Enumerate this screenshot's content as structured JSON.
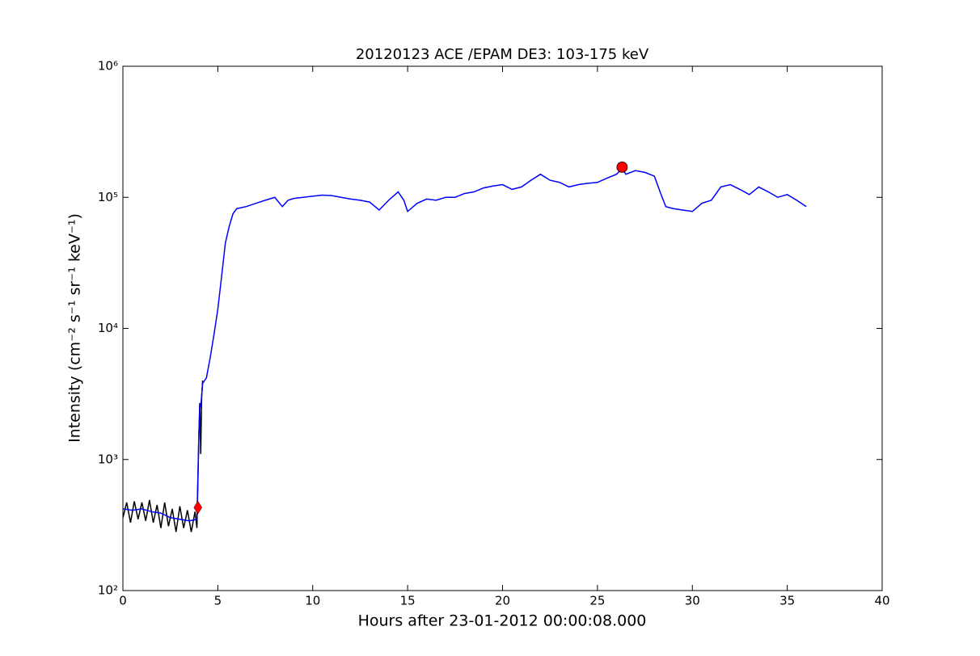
{
  "chart_data": {
    "type": "line",
    "title": "20120123 ACE /EPAM DE3: 103-175 keV",
    "x_label": "Hours after 23-01-2012 00:00:08.000",
    "y_label": "Intensity (cm⁻² s⁻¹ sr⁻¹ keV⁻¹)",
    "log_y": true,
    "xlim": [
      0,
      40
    ],
    "xticks": [
      0,
      5,
      10,
      15,
      20,
      25,
      30,
      35,
      40
    ],
    "ylim": [
      100,
      1000000
    ],
    "yticks": [
      {
        "value": 100,
        "label": "10²"
      },
      {
        "value": 1000,
        "label": "10³"
      },
      {
        "value": 10000,
        "label": "10⁴"
      },
      {
        "value": 100000,
        "label": "10⁵"
      },
      {
        "value": 1000000,
        "label": "10⁶"
      }
    ],
    "series": [
      {
        "color": "#000000",
        "x": [
          0,
          0.2,
          0.4,
          0.6,
          0.8,
          1.0,
          1.2,
          1.4,
          1.6,
          1.8,
          2.0,
          2.2,
          2.4,
          2.6,
          2.8,
          3.0,
          3.2,
          3.4,
          3.6,
          3.8,
          3.9,
          4.0,
          4.05,
          4.1,
          4.15,
          4.2
        ],
        "values": [
          360,
          470,
          330,
          480,
          350,
          470,
          340,
          490,
          330,
          450,
          300,
          470,
          310,
          420,
          280,
          440,
          300,
          410,
          280,
          400,
          300,
          1500,
          2700,
          1100,
          3000,
          4000
        ]
      },
      {
        "color": "#0000ff",
        "x": [
          0,
          0.5,
          1,
          1.5,
          2,
          2.5,
          3,
          3.5,
          3.9,
          4.0,
          4.05,
          4.1,
          4.2,
          4.4,
          4.6,
          4.8,
          5.0,
          5.2,
          5.4,
          5.6,
          5.8,
          6.0,
          6.5,
          7,
          7.5,
          8,
          8.4,
          8.7,
          9,
          9.5,
          10,
          10.5,
          11,
          11.5,
          12,
          12.5,
          13,
          13.5,
          14,
          14.5,
          14.8,
          15,
          15.5,
          16,
          16.5,
          17,
          17.5,
          18,
          18.5,
          19,
          19.5,
          20,
          20.5,
          21,
          21.5,
          22,
          22.5,
          23,
          23.5,
          24,
          24.5,
          25,
          25.5,
          26,
          26.3,
          26.5,
          27,
          27.5,
          28,
          28.3,
          28.6,
          29,
          29.5,
          30,
          30.5,
          31,
          31.5,
          32,
          32.5,
          33,
          33.5,
          34,
          34.5,
          35,
          35.5,
          36
        ],
        "values": [
          420,
          410,
          420,
          400,
          390,
          360,
          350,
          340,
          350,
          1500,
          2600,
          2500,
          3800,
          4200,
          6000,
          9000,
          14000,
          25000,
          45000,
          60000,
          75000,
          82000,
          85000,
          90000,
          95000,
          100000,
          85000,
          95000,
          98000,
          100000,
          102000,
          104000,
          103000,
          100000,
          97000,
          95000,
          92000,
          80000,
          95000,
          110000,
          95000,
          78000,
          90000,
          97000,
          95000,
          100000,
          100000,
          107000,
          110000,
          118000,
          122000,
          125000,
          115000,
          120000,
          135000,
          150000,
          135000,
          130000,
          120000,
          125000,
          128000,
          130000,
          140000,
          150000,
          165000,
          150000,
          160000,
          155000,
          145000,
          110000,
          85000,
          82000,
          80000,
          78000,
          90000,
          95000,
          120000,
          125000,
          115000,
          105000,
          120000,
          110000,
          100000,
          105000,
          95000,
          85000
        ]
      }
    ],
    "markers": [
      {
        "x": 3.95,
        "y": 430,
        "shape": "diamond",
        "color": "#ff0000"
      },
      {
        "x": 26.3,
        "y": 170000,
        "shape": "circle",
        "color": "#ff0000"
      }
    ]
  }
}
